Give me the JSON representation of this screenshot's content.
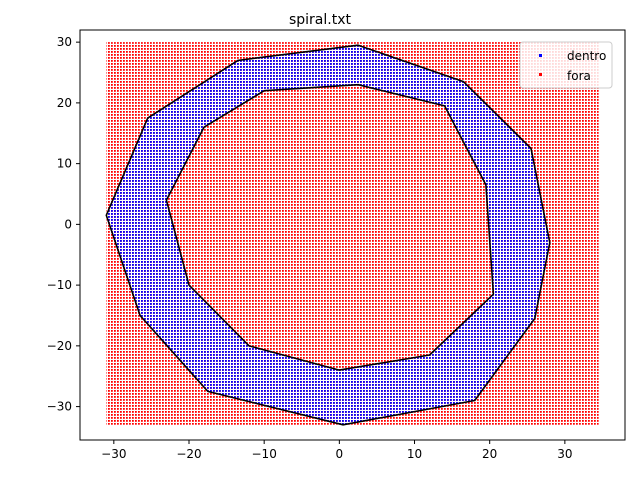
{
  "chart_data": {
    "type": "scatter",
    "title": "spiral.txt",
    "xlabel": "",
    "ylabel": "",
    "xlim": [
      -34.5,
      38.0
    ],
    "ylim": [
      -35.5,
      32.0
    ],
    "xticks": [
      -30,
      -20,
      -10,
      0,
      10,
      20,
      30
    ],
    "yticks": [
      -30,
      -20,
      -10,
      0,
      10,
      20,
      30
    ],
    "grid": false,
    "legend_position": "top-right",
    "series": [
      {
        "name": "dentro",
        "color": "#0000ff",
        "marker": "point"
      },
      {
        "name": "fora",
        "color": "#ff0000",
        "marker": "point"
      }
    ],
    "grid_points": {
      "x_range": [
        -31,
        34.5
      ],
      "y_range": [
        -33,
        30
      ],
      "spacing": 0.6
    },
    "outline_color": "#000000",
    "spiral_polygon": {
      "outer": [
        [
          2.5,
          29.5
        ],
        [
          16.5,
          23.5
        ],
        [
          25.5,
          12.5
        ],
        [
          28.0,
          -3.0
        ],
        [
          26.0,
          -15.5
        ],
        [
          18.0,
          -29.0
        ],
        [
          0.5,
          -33.0
        ],
        [
          -17.5,
          -27.5
        ],
        [
          -26.5,
          -15.0
        ],
        [
          -31.0,
          1.5
        ],
        [
          -25.5,
          17.5
        ],
        [
          -13.5,
          27.0
        ],
        [
          2.5,
          29.5
        ]
      ],
      "inner": [
        [
          2.5,
          23.0
        ],
        [
          14.0,
          19.5
        ],
        [
          19.5,
          6.5
        ],
        [
          20.5,
          -11.5
        ],
        [
          12.0,
          -21.5
        ],
        [
          0.0,
          -24.0
        ],
        [
          -12.0,
          -20.0
        ],
        [
          -20.0,
          -10.0
        ],
        [
          -23.0,
          4.0
        ],
        [
          -18.0,
          16.0
        ],
        [
          -10.0,
          22.0
        ],
        [
          2.5,
          23.0
        ]
      ]
    }
  }
}
